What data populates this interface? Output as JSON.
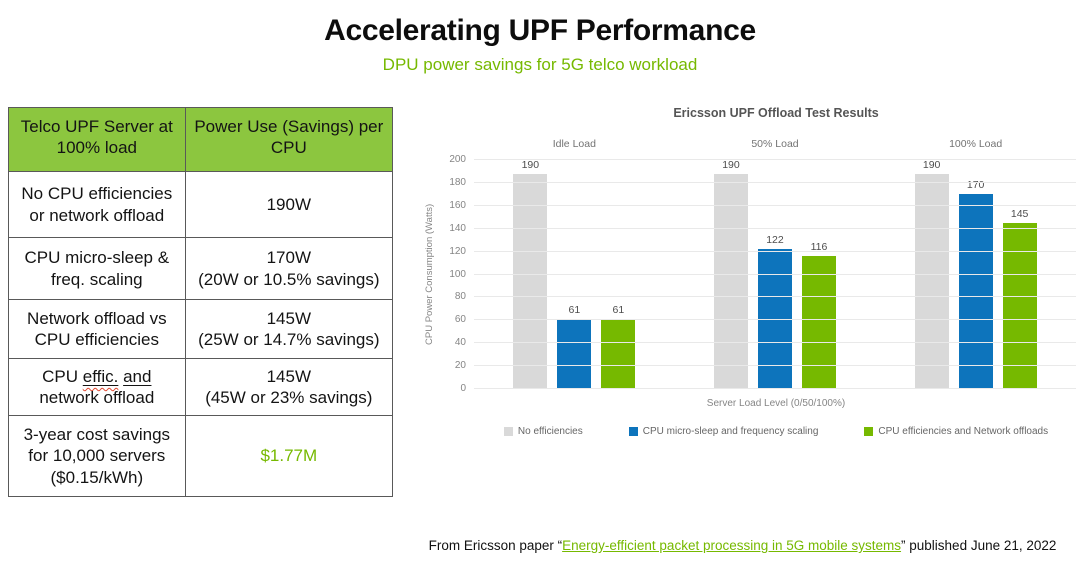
{
  "colors": {
    "accent_green": "#76b900",
    "header_green": "#8cc63f",
    "bar_gray": "#d9d9d9",
    "bar_blue": "#0d74bc",
    "bar_green": "#76b900"
  },
  "slide": {
    "title": "Accelerating UPF Performance",
    "subtitle": "DPU power savings for 5G telco workload"
  },
  "table": {
    "headers": [
      "Telco UPF Server at\n100% load",
      "Power Use (Savings) per\nCPU"
    ],
    "rows": [
      {
        "label": "No CPU efficiencies\nor network offload",
        "value": "190W"
      },
      {
        "label": "CPU micro-sleep &\nfreq. scaling",
        "value": "170W\n(20W or 10.5% savings)"
      },
      {
        "label": "Network offload vs\nCPU efficiencies",
        "value": "145W\n(25W or 14.7% savings)"
      },
      {
        "label_parts": {
          "pre": "CPU ",
          "u1": "effic.",
          "mid": " ",
          "u2": "and",
          "post": "\nnetwork offload"
        },
        "value": "145W\n(45W or 23% savings)"
      },
      {
        "label": "3-year cost savings\nfor 10,000 servers\n($0.15/kWh)",
        "value": "$1.77M"
      }
    ]
  },
  "chart_data": {
    "type": "bar",
    "title": "Ericsson UPF Offload Test Results",
    "categories": [
      "Idle Load",
      "50% Load",
      "100% Load"
    ],
    "series": [
      {
        "name": "No efficiencies",
        "color": "#d9d9d9",
        "values": [
          190,
          190,
          190
        ]
      },
      {
        "name": "CPU micro-sleep and frequency scaling",
        "color": "#0d74bc",
        "values": [
          61,
          122,
          170
        ]
      },
      {
        "name": "CPU efficiencies and Network offloads",
        "color": "#76b900",
        "values": [
          61,
          116,
          145
        ]
      }
    ],
    "xlabel": "Server Load Level (0/50/100%)",
    "ylabel": "CPU Power Consumption (Watts)",
    "ylim": [
      0,
      200
    ],
    "ytick_step": 20,
    "grid": true,
    "legend_position": "bottom"
  },
  "footer": {
    "prefix": "From Ericsson paper “",
    "link": "Energy-efficient packet processing in 5G mobile systems",
    "suffix": "” published June 21, 2022"
  }
}
